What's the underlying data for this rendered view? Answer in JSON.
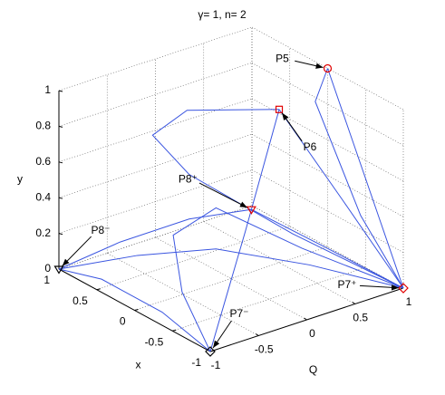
{
  "chart_data": {
    "type": "line3d",
    "title": "γ= 1,  n= 2",
    "qlabel": "Q",
    "xlabel": "x",
    "ylabel": "y",
    "qlim": [
      -1,
      1
    ],
    "qticks": [
      -1,
      -0.5,
      0,
      0.5,
      1
    ],
    "xlim": [
      -1,
      1
    ],
    "xticks": [
      -1,
      -0.5,
      0,
      0.5,
      1
    ],
    "ylim": [
      0,
      1
    ],
    "yticks": [
      0,
      0.2,
      0.4,
      0.6,
      0.8,
      1
    ],
    "grid": true,
    "series": [
      {
        "color": "#3a55e0",
        "Q": [
          0.2,
          -0.4,
          -1
        ],
        "x": [
          -0.38,
          -0.7,
          -1
        ],
        "y": [
          1,
          0.5,
          0
        ]
      },
      {
        "color": "#3a55e0",
        "Q": [
          0.2,
          0.6,
          1
        ],
        "x": [
          -0.38,
          -0.7,
          -1
        ],
        "y": [
          1,
          0.5,
          0
        ]
      },
      {
        "color": "#3a55e0",
        "Q": [
          1,
          1,
          1,
          1
        ],
        "x": [
          0,
          -0.3,
          -0.7,
          -1
        ],
        "y": [
          1,
          0.7,
          0.3,
          0
        ]
      },
      {
        "color": "#3a55e0",
        "Q": [
          1,
          0.95,
          0.95,
          1
        ],
        "x": [
          0,
          0.1,
          -0.5,
          -1
        ],
        "y": [
          1,
          0.8,
          0.3,
          0
        ]
      },
      {
        "color": "#3a55e0",
        "Q": [
          -1,
          -0.6,
          -0.2,
          0.21,
          0.6,
          1
        ],
        "x": [
          1,
          0.7,
          0.3,
          0,
          -0.5,
          -1
        ],
        "y": [
          0,
          0.15,
          0.3,
          0.35,
          0.18,
          0
        ]
      },
      {
        "color": "#3a55e0",
        "Q": [
          -1,
          -0.95,
          -0.95,
          -1
        ],
        "x": [
          1,
          0.5,
          -0.3,
          -1
        ],
        "y": [
          0,
          0.05,
          0.05,
          0
        ]
      },
      {
        "color": "#3a55e0",
        "Q": [
          -1,
          -0.9,
          -0.6,
          0,
          0.5,
          1
        ],
        "x": [
          -1,
          -0.5,
          0,
          0.2,
          -0.3,
          -1
        ],
        "y": [
          0,
          0.2,
          0.35,
          0.35,
          0.15,
          0
        ]
      },
      {
        "color": "#3a55e0",
        "Q": [
          0.2,
          -0.3,
          -0.5,
          -0.2,
          0.4,
          1
        ],
        "x": [
          -0.38,
          0.2,
          0.4,
          0.3,
          -0.3,
          -1
        ],
        "y": [
          1,
          0.95,
          0.8,
          0.55,
          0.25,
          0
        ]
      },
      {
        "color": "#3a55e0",
        "Q": [
          -1,
          -0.5,
          0,
          0.5,
          1
        ],
        "x": [
          1,
          0.6,
          0.2,
          -0.4,
          -1
        ],
        "y": [
          0,
          0.08,
          0.12,
          0.08,
          0
        ]
      }
    ],
    "points": [
      {
        "label": "P5",
        "Q": 1,
        "x": 0,
        "y": 1,
        "marker": "circle",
        "color": "#e00000"
      },
      {
        "label": "P6",
        "Q": 0.2,
        "x": -0.38,
        "y": 1,
        "marker": "square",
        "color": "#e00000"
      },
      {
        "label": "P8⁺",
        "Q": 0.21,
        "x": 0,
        "y": 0.35,
        "marker": "triangle",
        "color": "#e00000"
      },
      {
        "label": "P8⁻",
        "Q": -1,
        "x": 1,
        "y": 0,
        "marker": "triangle",
        "color": "#000000"
      },
      {
        "label": "P7⁺",
        "Q": 1,
        "x": -1,
        "y": 0,
        "marker": "diamond",
        "color": "#e00000"
      },
      {
        "label": "P7⁻",
        "Q": -1,
        "x": -1,
        "y": 0,
        "marker": "diamond",
        "color": "#000000"
      }
    ]
  }
}
